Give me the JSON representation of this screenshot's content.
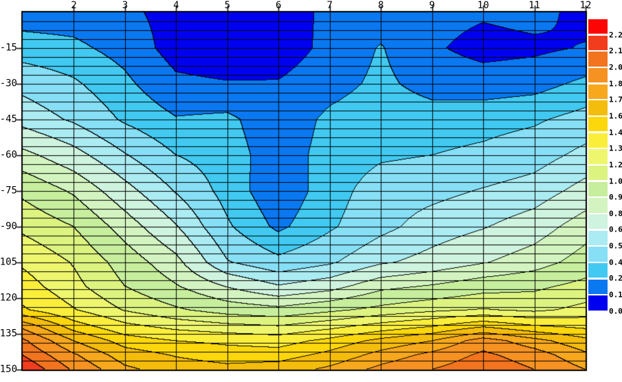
{
  "figure": {
    "background": "#FFFFFF",
    "border_color": "#000000"
  },
  "chart_data": {
    "type": "filled_contour",
    "title": "",
    "xlabel": "",
    "ylabel": "",
    "x_axis": {
      "position": "top",
      "range": [
        1,
        12
      ],
      "tick_labels": [
        "2",
        "3",
        "4",
        "5",
        "6",
        "7",
        "8",
        "9",
        "10",
        "11",
        "12"
      ],
      "tick_values": [
        2,
        3,
        4,
        5,
        6,
        7,
        8,
        9,
        10,
        11,
        12
      ]
    },
    "y_axis": {
      "position": "left",
      "range": [
        0,
        -150
      ],
      "tick_labels": [
        "-15",
        "-30",
        "-45",
        "-60",
        "-75",
        "-90",
        "-105",
        "-120",
        "-135",
        "-150"
      ],
      "tick_values": [
        -15,
        -30,
        -45,
        -60,
        -75,
        -90,
        -105,
        -120,
        -135,
        -150
      ]
    },
    "grid_overlay": {
      "vertical_lines_at_x": [
        2,
        3,
        4,
        5,
        6,
        7,
        8,
        9,
        10,
        11
      ],
      "horizontal_line_depth_step": 3.75,
      "line_color": "#000000"
    },
    "levels": [
      0.0,
      0.13,
      0.27,
      0.4,
      0.54,
      0.67,
      0.81,
      0.94,
      1.08,
      1.21,
      1.34,
      1.48,
      1.61,
      1.75,
      1.88,
      2.02,
      2.15,
      2.29
    ],
    "palette_bottom_to_top": [
      "#0000F0",
      "#0A78F0",
      "#41C9F1",
      "#86DFF4",
      "#ABEBF2",
      "#CEF3DE",
      "#D3F4C0",
      "#C6EE9C",
      "#DCF380",
      "#EEF66E",
      "#FAEE3B",
      "#FBD70B",
      "#F4BC0C",
      "#F7A81C",
      "#F59222",
      "#F2741E",
      "#F23C1E",
      "#FB0505"
    ],
    "colorbar": {
      "position": "right",
      "labels_bottom_to_top": [
        "0.00",
        "0.13",
        "0.27",
        "0.40",
        "0.54",
        "0.67",
        "0.81",
        "0.94",
        "1.08",
        "1.21",
        "1.34",
        "1.48",
        "1.61",
        "1.75",
        "1.88",
        "2.02",
        "2.15",
        "2.29"
      ]
    },
    "surface": {
      "x": [
        1,
        2,
        3,
        4,
        5,
        6,
        7,
        8,
        9,
        10,
        11,
        12
      ],
      "depth": [
        0,
        15,
        30,
        45,
        60,
        75,
        90,
        105,
        115,
        125,
        132,
        138,
        144,
        150
      ],
      "values": [
        [
          0.2,
          0.2,
          0.16,
          0.08,
          0.04,
          0.06,
          0.16,
          0.19,
          0.18,
          0.15,
          0.18,
          0.08
        ],
        [
          0.33,
          0.3,
          0.22,
          0.07,
          0.03,
          0.05,
          0.17,
          0.28,
          0.15,
          0.08,
          0.1,
          0.14
        ],
        [
          0.5,
          0.42,
          0.3,
          0.16,
          0.14,
          0.14,
          0.22,
          0.3,
          0.22,
          0.2,
          0.22,
          0.3
        ],
        [
          0.62,
          0.52,
          0.38,
          0.28,
          0.3,
          0.18,
          0.3,
          0.35,
          0.33,
          0.35,
          0.38,
          0.45
        ],
        [
          0.85,
          0.72,
          0.55,
          0.4,
          0.33,
          0.2,
          0.32,
          0.38,
          0.4,
          0.43,
          0.48,
          0.58
        ],
        [
          1.05,
          0.92,
          0.72,
          0.53,
          0.35,
          0.17,
          0.34,
          0.47,
          0.5,
          0.55,
          0.6,
          0.72
        ],
        [
          1.18,
          1.08,
          0.88,
          0.68,
          0.42,
          0.24,
          0.38,
          0.5,
          0.6,
          0.66,
          0.74,
          0.88
        ],
        [
          1.32,
          1.2,
          1.02,
          0.85,
          0.55,
          0.44,
          0.52,
          0.65,
          0.72,
          0.8,
          0.88,
          1.0
        ],
        [
          1.4,
          1.25,
          1.08,
          0.95,
          0.8,
          0.68,
          0.75,
          0.9,
          0.95,
          1.02,
          1.05,
          1.12
        ],
        [
          1.5,
          1.35,
          1.2,
          1.1,
          1.02,
          0.98,
          1.05,
          1.12,
          1.18,
          1.22,
          1.18,
          1.25
        ],
        [
          1.85,
          1.55,
          1.38,
          1.3,
          1.25,
          1.22,
          1.3,
          1.4,
          1.48,
          1.6,
          1.5,
          1.45
        ],
        [
          2.05,
          1.75,
          1.55,
          1.48,
          1.45,
          1.42,
          1.52,
          1.65,
          1.75,
          1.95,
          1.8,
          1.65
        ],
        [
          2.15,
          1.9,
          1.68,
          1.6,
          1.55,
          1.55,
          1.65,
          1.8,
          1.92,
          2.05,
          1.95,
          1.78
        ],
        [
          2.27,
          2.0,
          1.78,
          1.68,
          1.65,
          1.68,
          1.78,
          1.92,
          2.02,
          2.12,
          2.02,
          1.88
        ]
      ]
    }
  }
}
